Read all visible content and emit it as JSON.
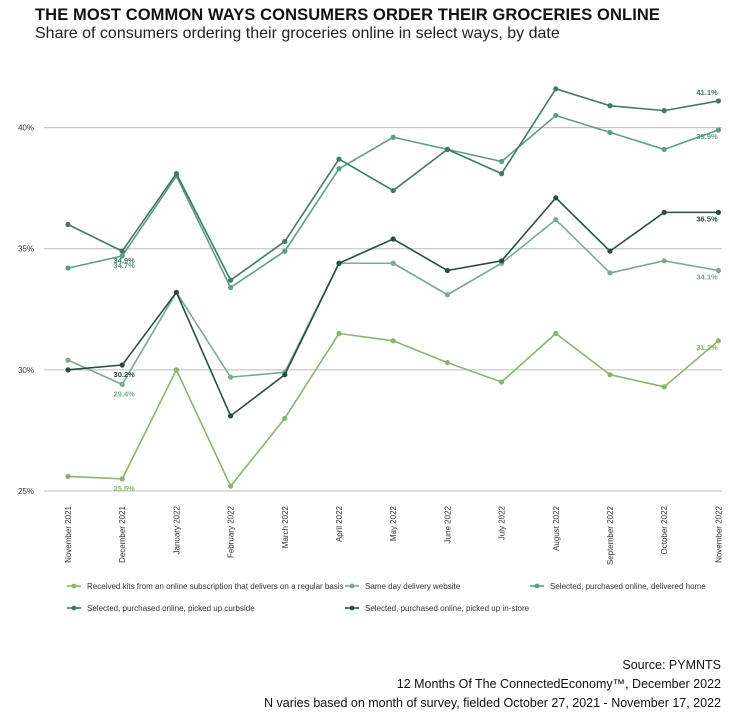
{
  "header": {
    "title": "THE MOST COMMON WAYS CONSUMERS ORDER THEIR GROCERIES ONLINE",
    "subtitle": "Share of consumers ordering their groceries online in select ways, by date"
  },
  "footer": {
    "source": "Source: PYMNTS",
    "report": "12 Months Of The ConnectedEconomy™, December 2022",
    "note": "N varies based on month of survey, fielded October 27, 2021 - November 17, 2022"
  },
  "chart_data": {
    "type": "line",
    "x": [
      "November 2021",
      "December 2021",
      "January 2022",
      "February 2022",
      "March 2022",
      "April 2022",
      "May 2022",
      "June 2022",
      "July 2022",
      "August 2022",
      "September 2022",
      "October 2022",
      "November 2022"
    ],
    "ylim": [
      25,
      42.5
    ],
    "yticks": [
      25,
      30,
      35,
      40
    ],
    "ytick_labels": [
      "25%",
      "30%",
      "35%",
      "40%"
    ],
    "grid": true,
    "legend_position": "bottom",
    "series": [
      {
        "name": "Received kits from an online subscription that delivers on a regular basis",
        "color": "#8ab56e",
        "values": [
          25.6,
          25.5,
          30.0,
          25.2,
          28.0,
          31.5,
          31.2,
          30.3,
          29.5,
          31.5,
          29.8,
          29.3,
          31.2
        ],
        "labels": [
          {
            "index": 1,
            "text": "25.5%"
          },
          {
            "index": 12,
            "text": "31.2%"
          }
        ]
      },
      {
        "name": "Same day delivery website",
        "color": "#7aab8e",
        "values": [
          30.4,
          29.4,
          33.2,
          29.7,
          29.9,
          34.4,
          34.4,
          33.1,
          34.4,
          36.2,
          34.0,
          34.5,
          34.1
        ],
        "labels": [
          {
            "index": 1,
            "text": "29.4%"
          },
          {
            "index": 12,
            "text": "34.1%"
          }
        ]
      },
      {
        "name": "Selected, purchased online, delivered home",
        "color": "#5e9e83",
        "values": [
          34.2,
          34.7,
          38.0,
          33.4,
          34.9,
          38.3,
          39.6,
          39.1,
          38.6,
          40.5,
          39.8,
          39.1,
          39.9
        ],
        "labels": [
          {
            "index": 1,
            "text": "34.7%"
          },
          {
            "index": 12,
            "text": "39.9%"
          }
        ]
      },
      {
        "name": "Selected, purchased online, picked up curbside",
        "color": "#3f7a66",
        "values": [
          36.0,
          34.9,
          38.1,
          33.7,
          35.3,
          38.7,
          37.4,
          39.1,
          38.1,
          41.6,
          40.9,
          40.7,
          41.1
        ],
        "labels": [
          {
            "index": 1,
            "text": "34.9%"
          },
          {
            "index": 12,
            "text": "41.1%"
          }
        ]
      },
      {
        "name": "Selected, purchased online, picked up in-store",
        "color": "#264e42",
        "values": [
          30.0,
          30.2,
          33.2,
          28.1,
          29.8,
          34.4,
          35.4,
          34.1,
          34.5,
          37.1,
          34.9,
          36.5,
          36.5
        ],
        "labels": [
          {
            "index": 1,
            "text": "30.2%"
          },
          {
            "index": 12,
            "text": "36.5%"
          }
        ]
      }
    ]
  }
}
